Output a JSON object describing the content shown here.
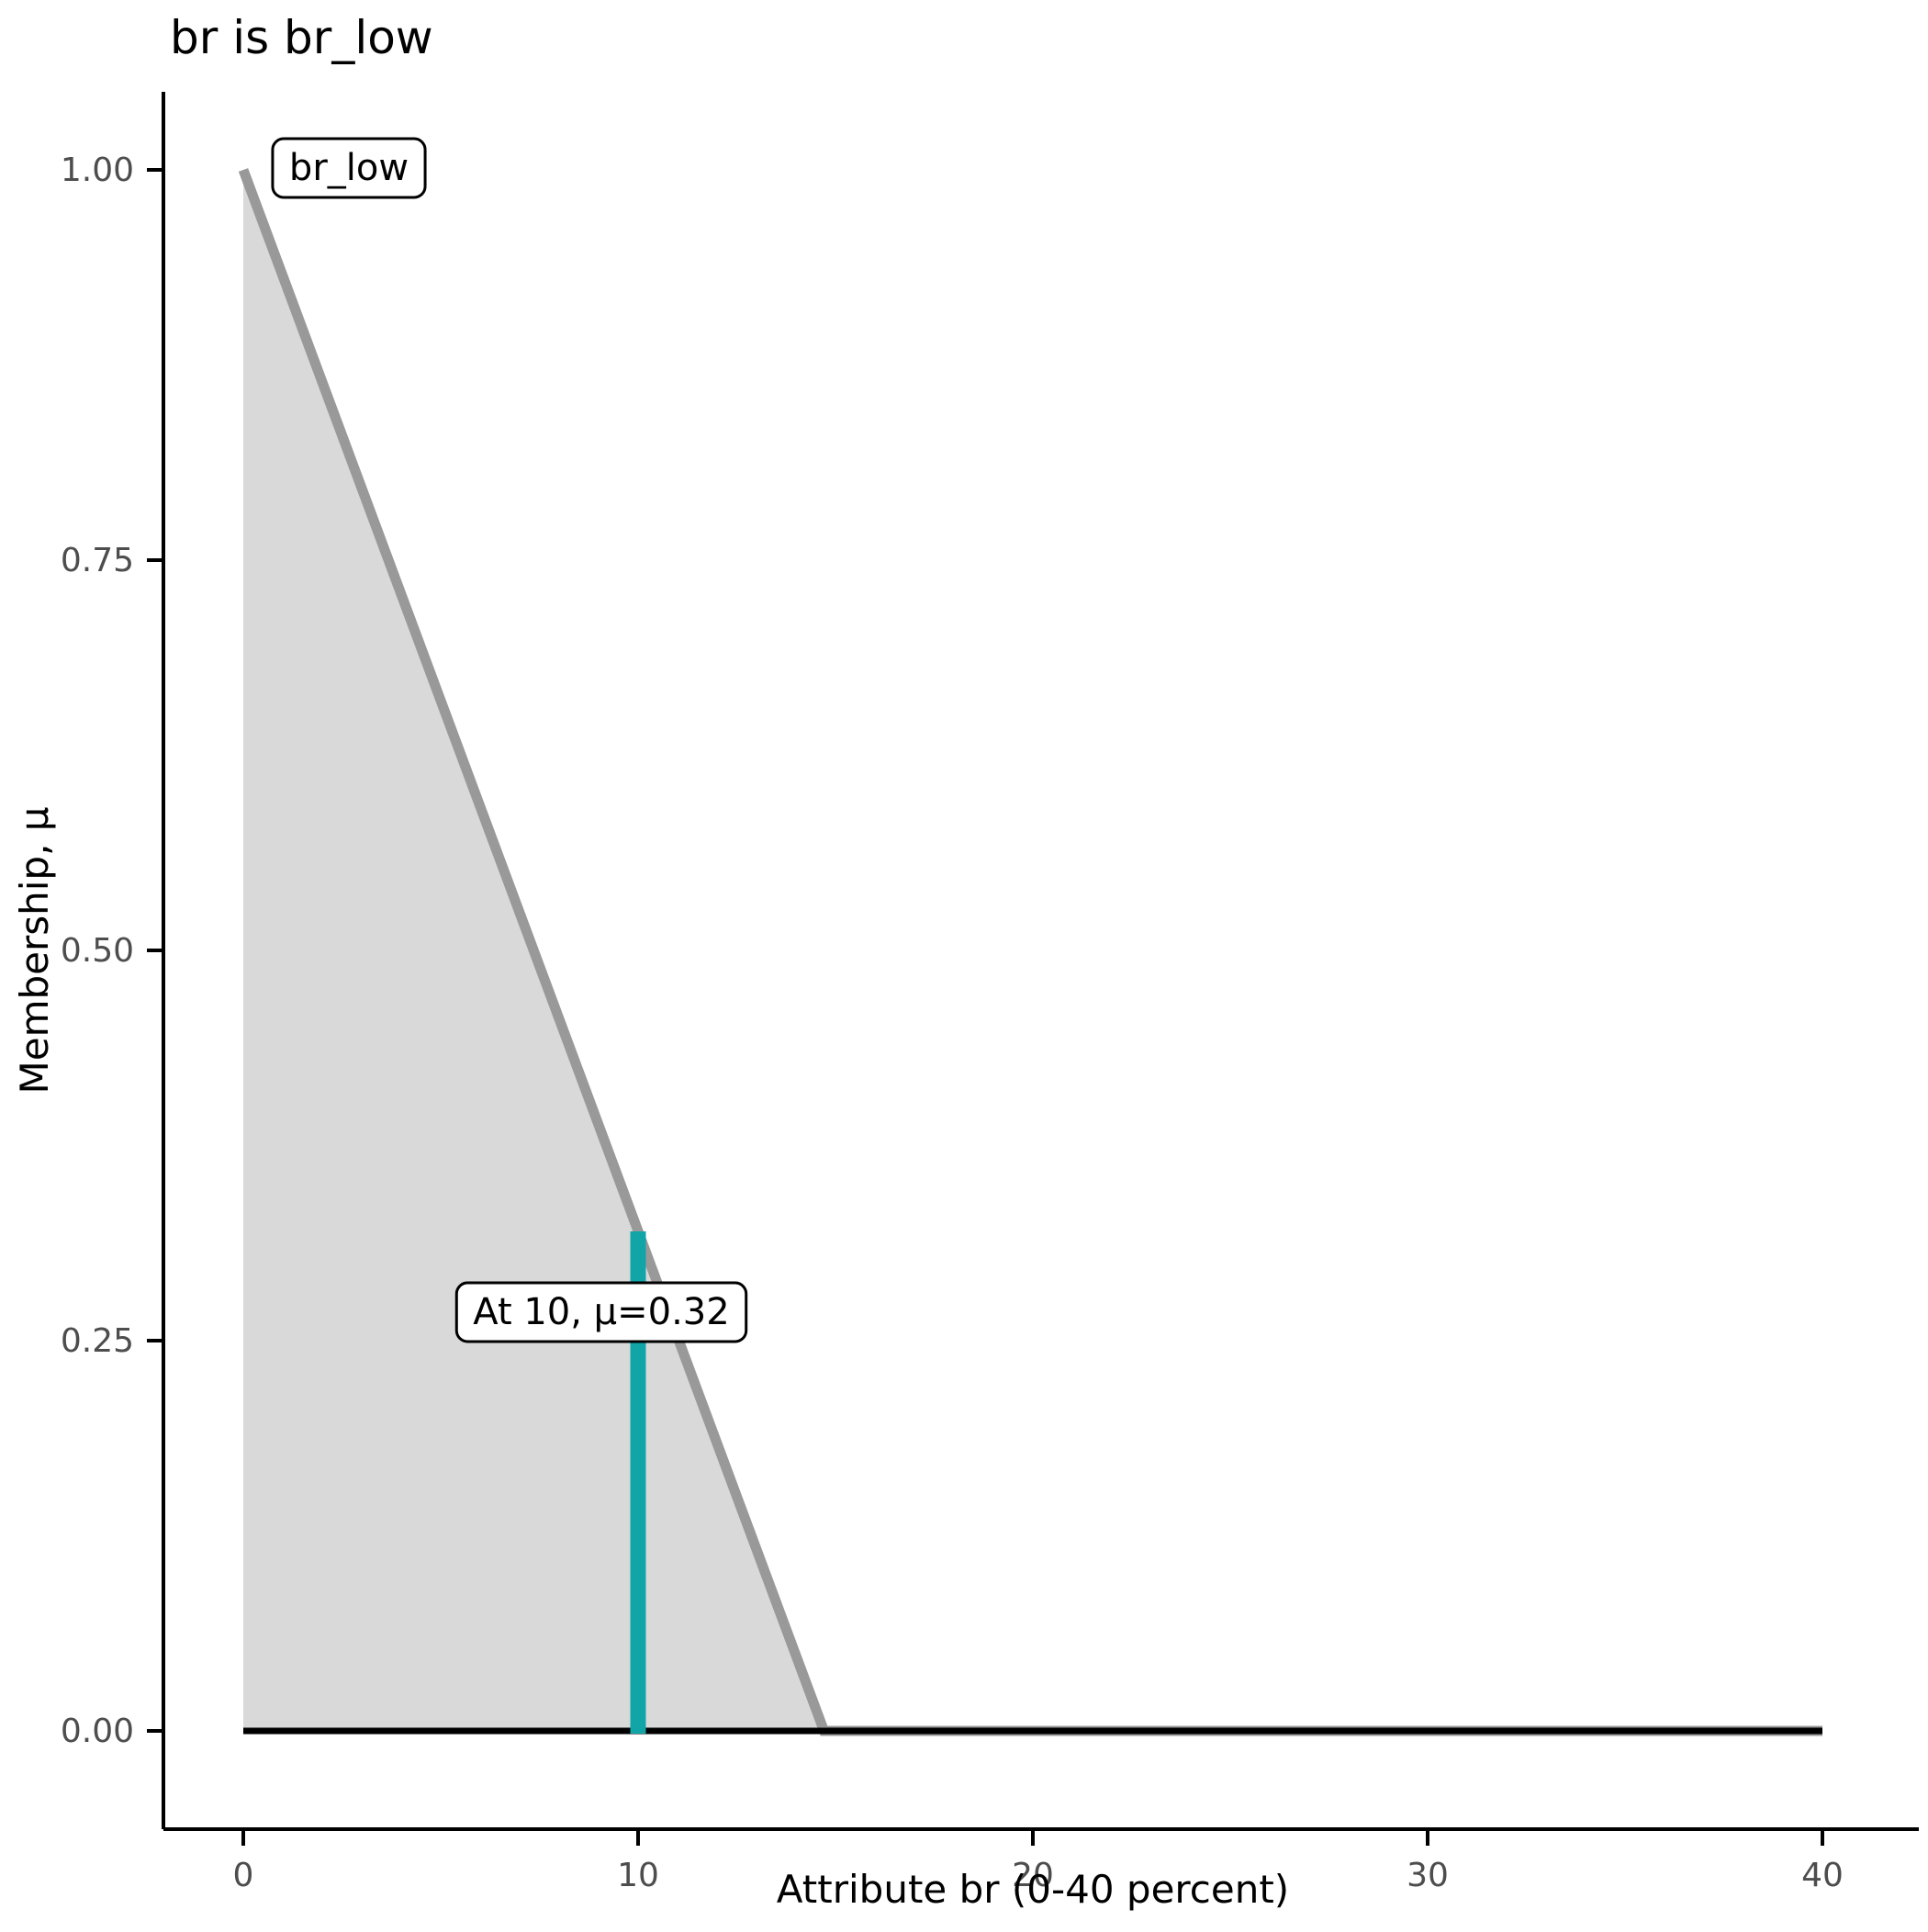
{
  "title": "br is br_low",
  "chart_data": {
    "type": "area",
    "title": "br is br_low",
    "xlabel": "Attribute br (0-40 percent)",
    "ylabel": "Membership, μ",
    "xlim": [
      0,
      40
    ],
    "ylim": [
      0,
      1
    ],
    "x_ticks": [
      0,
      10,
      20,
      30,
      40
    ],
    "x_tick_labels": [
      "0",
      "10",
      "20",
      "30",
      "40"
    ],
    "y_ticks": [
      0.0,
      0.25,
      0.5,
      0.75,
      1.0
    ],
    "y_tick_labels": [
      "0.00",
      "0.25",
      "0.50",
      "0.75",
      "1.00"
    ],
    "grid": false,
    "legend_position": "none",
    "series": [
      {
        "name": "br_low",
        "x": [
          0,
          14.71,
          40
        ],
        "y": [
          1,
          0,
          0
        ],
        "line_color": "#999999",
        "fill_color": "#D9D9D9"
      }
    ],
    "baseline": {
      "y": 0,
      "color": "#000000"
    },
    "set_label": {
      "text": "br_low",
      "x": 0,
      "y": 1
    },
    "highlight": {
      "x": 10,
      "mu": 0.32,
      "label": "At 10, μ=0.32",
      "color": "#12A5A8"
    }
  },
  "colors": {
    "axis_line": "#000000",
    "tick_text": "#4D4D4D",
    "title_text": "#000000",
    "label_box_fill": "#FFFFFF",
    "label_box_border": "#000000"
  }
}
